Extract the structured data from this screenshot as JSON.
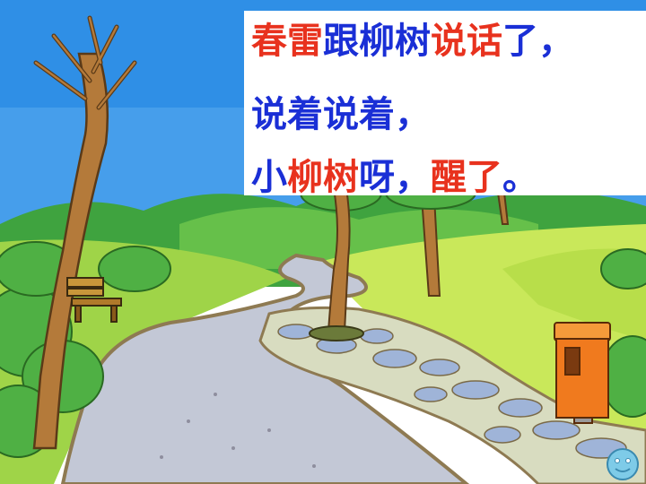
{
  "colors": {
    "sky": "#2f8fe6",
    "grass_light": "#c9e85a",
    "grass_dark": "#4fb044",
    "road": "#c3c8d6",
    "road_edge": "#8e7a52",
    "trunk": "#b47a3a",
    "bin": "#f07a1e",
    "text_blue": "#1a2fd6",
    "text_red": "#e8321e"
  },
  "poem": {
    "line1": [
      {
        "text": "春雷",
        "color": "red"
      },
      {
        "text": "跟柳树",
        "color": "blue"
      },
      {
        "text": "说话",
        "color": "red"
      },
      {
        "text": "了，",
        "color": "blue"
      }
    ],
    "line2": [
      {
        "text": "说着说着，",
        "color": "blue"
      }
    ],
    "line3": [
      {
        "text": "小",
        "color": "blue"
      },
      {
        "text": "柳树",
        "color": "red"
      },
      {
        "text": "呀，",
        "color": "blue"
      },
      {
        "text": "醒了",
        "color": "red"
      },
      {
        "text": "。",
        "color": "blue"
      }
    ]
  },
  "icons": {
    "bench": "bench-icon",
    "trash_bin": "trash-bin-icon",
    "smiley": "smiley-icon"
  }
}
